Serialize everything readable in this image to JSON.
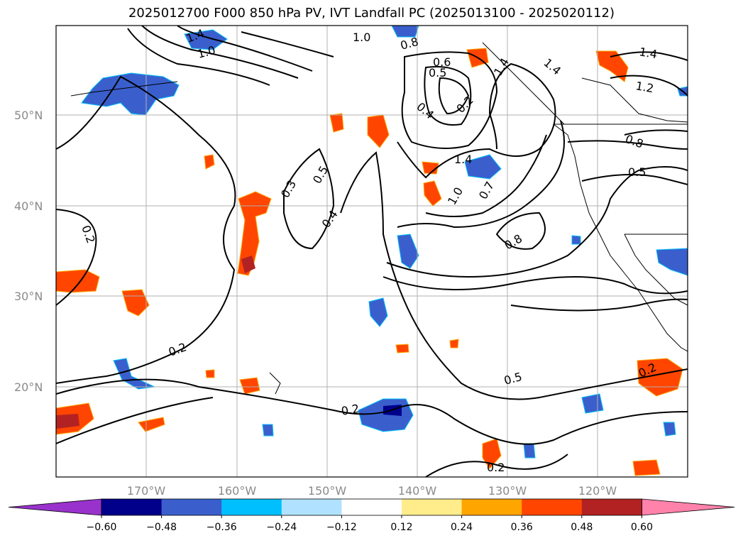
{
  "title": "2025012700 F000 850 hPa PV, IVT Landfall PC (2025013100 - 2025020112)",
  "lat_labels": [
    "50°N",
    "40°N",
    "30°N",
    "20°N"
  ],
  "lon_labels": [
    "170°W",
    "160°W",
    "150°W",
    "140°W",
    "130°W",
    "120°W"
  ],
  "colorbar": {
    "ticks": [
      "−0.60",
      "−0.48",
      "−0.36",
      "−0.24",
      "−0.12",
      "0.12",
      "0.24",
      "0.36",
      "0.48",
      "0.60"
    ],
    "colors": [
      "#9932cc",
      "#00008b",
      "#3a5fcd",
      "#00bfff",
      "#b0e2ff",
      "#ffffff",
      "#ffec8b",
      "#ffa500",
      "#ff4500",
      "#b22222",
      "#ff82ab"
    ]
  },
  "contour_labels": [
    "1.4",
    "1.0",
    "0.8",
    "0.6",
    "0.5",
    "0.4",
    "0.3",
    "0.2",
    "0.7",
    "1.2"
  ],
  "colors": {
    "contour": "#000000",
    "grid": "#b0b0b0",
    "coast": "#000000"
  }
}
